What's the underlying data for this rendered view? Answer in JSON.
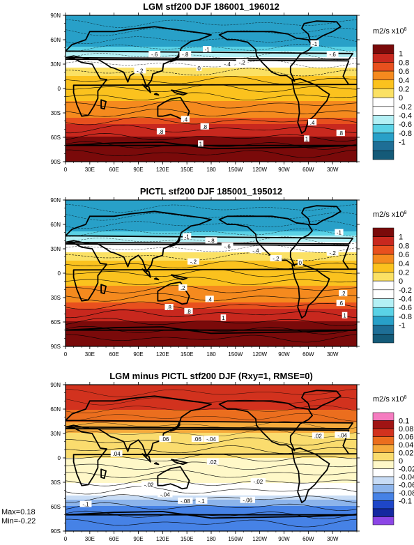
{
  "chart_data": [
    {
      "type": "heatmap",
      "title": "LGM stf200 DJF 186001_196012",
      "x_ticks": [
        "0",
        "30E",
        "60E",
        "90E",
        "120E",
        "150E",
        "180",
        "150W",
        "120W",
        "90W",
        "60W",
        "30W"
      ],
      "y_ticks": [
        "90N",
        "60N",
        "30N",
        "0",
        "30S",
        "60S",
        "90S"
      ],
      "colorbar": {
        "units": "m2/s x10",
        "exponent": "8",
        "levels": [
          "1",
          "0.8",
          "0.6",
          "0.4",
          "0.2",
          "0",
          "-0.2",
          "-0.4",
          "-0.6",
          "-0.8",
          "-1"
        ],
        "colors": [
          "#7a0a0a",
          "#c8281e",
          "#e8501e",
          "#f58a1e",
          "#fbc21e",
          "#fbe164",
          "#ffffff",
          "#ffffff",
          "#b4f0f5",
          "#5ad2e6",
          "#28a0c8",
          "#1e6e96",
          "#145a78"
        ]
      },
      "zonal_profile": {
        "lat": [
          90,
          60,
          45,
          30,
          15,
          0,
          -15,
          -30,
          -45,
          -60,
          -90
        ],
        "value": [
          -1,
          -1,
          -0.6,
          -0.1,
          0.2,
          0.3,
          0.4,
          0.5,
          0.8,
          1,
          1
        ]
      },
      "contour_labels": [
        {
          "text": "-1",
          "lon": 175,
          "lat": 48
        },
        {
          "text": "-.6",
          "lon": 110,
          "lat": 42
        },
        {
          "text": "-.8",
          "lon": 148,
          "lat": 42
        },
        {
          "text": "-.4",
          "lon": 200,
          "lat": 30
        },
        {
          "text": "-.2",
          "lon": 92,
          "lat": 22
        },
        {
          "text": "0",
          "lon": 165,
          "lat": 25
        },
        {
          "text": "-.2",
          "lon": 218,
          "lat": 32
        },
        {
          "text": "-1",
          "lon": 308,
          "lat": 55
        },
        {
          "text": "-.6",
          "lon": 330,
          "lat": 42
        },
        {
          "text": ".4",
          "lon": 148,
          "lat": -38
        },
        {
          "text": ".8",
          "lon": 118,
          "lat": -53
        },
        {
          "text": ".8",
          "lon": 172,
          "lat": -47
        },
        {
          "text": ".4",
          "lon": 305,
          "lat": -42
        },
        {
          "text": "1",
          "lon": 167,
          "lat": -68
        },
        {
          "text": "1",
          "lon": 298,
          "lat": -62
        },
        {
          "text": ".8",
          "lon": 340,
          "lat": -55
        }
      ]
    },
    {
      "type": "heatmap",
      "title": "PICTL stf200 DJF 185001_195012",
      "x_ticks": [
        "0",
        "30E",
        "60E",
        "90E",
        "120E",
        "150E",
        "180",
        "150W",
        "120W",
        "90W",
        "60W",
        "30W"
      ],
      "y_ticks": [
        "90N",
        "60N",
        "30N",
        "0",
        "30S",
        "60S",
        "90S"
      ],
      "colorbar": {
        "units": "m2/s x10",
        "exponent": "8",
        "levels": [
          "1",
          "0.8",
          "0.6",
          "0.4",
          "0.2",
          "0",
          "-0.2",
          "-0.4",
          "-0.6",
          "-0.8",
          "-1"
        ],
        "colors": [
          "#7a0a0a",
          "#c8281e",
          "#e8501e",
          "#f58a1e",
          "#fbc21e",
          "#fbe164",
          "#ffffff",
          "#ffffff",
          "#b4f0f5",
          "#5ad2e6",
          "#28a0c8",
          "#1e6e96",
          "#145a78"
        ]
      },
      "zonal_profile": {
        "lat": [
          90,
          60,
          45,
          30,
          15,
          0,
          -15,
          -30,
          -45,
          -60,
          -90
        ],
        "value": [
          -1,
          -1,
          -0.6,
          -0.1,
          0.2,
          0.3,
          0.4,
          0.5,
          0.8,
          1,
          1
        ]
      },
      "contour_labels": [
        {
          "text": "-1",
          "lon": 150,
          "lat": 45
        },
        {
          "text": "-.8",
          "lon": 180,
          "lat": 40
        },
        {
          "text": "-.6",
          "lon": 200,
          "lat": 33
        },
        {
          "text": "-.4",
          "lon": 235,
          "lat": 28
        },
        {
          "text": "-.2",
          "lon": 260,
          "lat": 18
        },
        {
          "text": "0",
          "lon": 290,
          "lat": 13
        },
        {
          "text": "-1",
          "lon": 338,
          "lat": 50
        },
        {
          "text": "-.2",
          "lon": 330,
          "lat": 25
        },
        {
          "text": "-.2",
          "lon": 158,
          "lat": 14
        },
        {
          "text": ".2",
          "lon": 145,
          "lat": -18
        },
        {
          "text": ".4",
          "lon": 178,
          "lat": -32
        },
        {
          "text": ".8",
          "lon": 128,
          "lat": -42
        },
        {
          "text": ".8",
          "lon": 152,
          "lat": -47
        },
        {
          "text": "1",
          "lon": 195,
          "lat": -55
        },
        {
          "text": ".2",
          "lon": 343,
          "lat": -25
        },
        {
          "text": ".6",
          "lon": 340,
          "lat": -37
        },
        {
          "text": "1",
          "lon": 345,
          "lat": -52
        }
      ]
    },
    {
      "type": "heatmap",
      "title": "LGM minus PICTL stf200 DJF (Rxy=1, RMSE=0)",
      "x_ticks": [
        "0",
        "30E",
        "60E",
        "90E",
        "120E",
        "150E",
        "180",
        "150W",
        "120W",
        "90W",
        "60W",
        "30W"
      ],
      "y_ticks": [
        "90N",
        "60N",
        "30N",
        "0",
        "30S",
        "60S",
        "90S"
      ],
      "colorbar": {
        "units": "m2/s x10",
        "exponent": "8",
        "levels": [
          "0.1",
          "0.08",
          "0.06",
          "0.04",
          "0.02",
          "0",
          "-0.02",
          "-0.04",
          "-0.06",
          "-0.08",
          "-0.1"
        ],
        "colors": [
          "#f57cc0",
          "#a01414",
          "#d2321e",
          "#eb6e1e",
          "#f5aa3c",
          "#fadc6e",
          "#fff8c8",
          "#ffffff",
          "#c8dcf5",
          "#8cb4eb",
          "#4682e6",
          "#1e46c8",
          "#1428a0",
          "#8c46e6"
        ]
      },
      "zonal_profile": {
        "lat": [
          90,
          75,
          60,
          45,
          30,
          15,
          0,
          -15,
          -30,
          -45,
          -60,
          -75,
          -90
        ],
        "value": [
          0.06,
          0.08,
          0.06,
          0.04,
          0.02,
          0.01,
          0,
          -0.01,
          -0.02,
          -0.04,
          -0.08,
          -0.1,
          -0.1
        ]
      },
      "contour_labels": [
        {
          "text": ".06",
          "lon": 123,
          "lat": 23
        },
        {
          "text": ".06",
          "lon": 163,
          "lat": 23
        },
        {
          "text": "-.04",
          "lon": 180,
          "lat": 23
        },
        {
          "text": ".04",
          "lon": 63,
          "lat": 5
        },
        {
          "text": ".02",
          "lon": 312,
          "lat": 27
        },
        {
          "text": "-.04",
          "lon": 342,
          "lat": 28
        },
        {
          "text": "-.02",
          "lon": 103,
          "lat": -33
        },
        {
          "text": "-.04",
          "lon": 123,
          "lat": -45
        },
        {
          "text": "-.08",
          "lon": 148,
          "lat": -53
        },
        {
          "text": "-.1",
          "lon": 168,
          "lat": -53
        },
        {
          "text": "-.06",
          "lon": 225,
          "lat": -52
        },
        {
          "text": "-.1",
          "lon": 25,
          "lat": -57
        },
        {
          "text": "-.02",
          "lon": 238,
          "lat": -29
        },
        {
          "text": ".02",
          "lon": 182,
          "lat": -5
        }
      ],
      "stats": {
        "max": "Max=0.18",
        "min": "Min=-0.22"
      }
    }
  ]
}
